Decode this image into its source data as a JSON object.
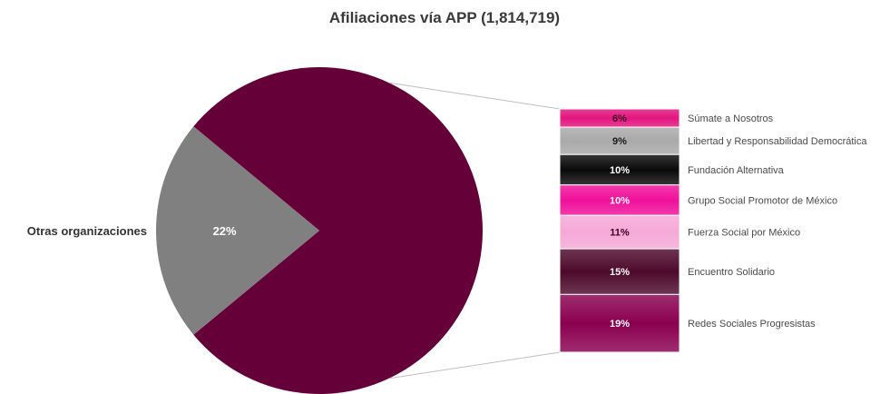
{
  "chart_data": {
    "type": "pie",
    "title": "Afiliaciones vía APP (1,814,719)",
    "slices": [
      {
        "name": "Otras organizaciones",
        "value_label": "22%",
        "value": 22,
        "color": "#808080"
      },
      {
        "name": "",
        "value": 78,
        "color": "#650038"
      }
    ],
    "breakdown": {
      "type": "stacked-bar",
      "segments": [
        {
          "name": "Súmate a Nosotros",
          "value": 6,
          "value_label": "6%",
          "color": "#e3157f",
          "text_color": "#3a0020"
        },
        {
          "name": "Libertad y Responsabilidad Democrática",
          "value": 9,
          "value_label": "9%",
          "color": "#a9a9a9",
          "text_color": "#1a1a1a"
        },
        {
          "name": "Fundación Alternativa",
          "value": 10,
          "value_label": "10%",
          "color": "#0a0a0a",
          "text_color": "#ffffff"
        },
        {
          "name": "Grupo Social Promotor de México",
          "value": 10,
          "value_label": "10%",
          "color": "#f0109a",
          "text_color": "#ffffff"
        },
        {
          "name": "Fuerza Social por México",
          "value": 11,
          "value_label": "11%",
          "color": "#f5a8d6",
          "text_color": "#3a0020"
        },
        {
          "name": "Encuentro Solidario",
          "value": 15,
          "value_label": "15%",
          "color": "#4e0a2c",
          "text_color": "#ffffff"
        },
        {
          "name": "Redes Sociales Progresistas",
          "value": 19,
          "value_label": "19%",
          "color": "#8a0050",
          "text_color": "#ffffff"
        }
      ]
    }
  }
}
